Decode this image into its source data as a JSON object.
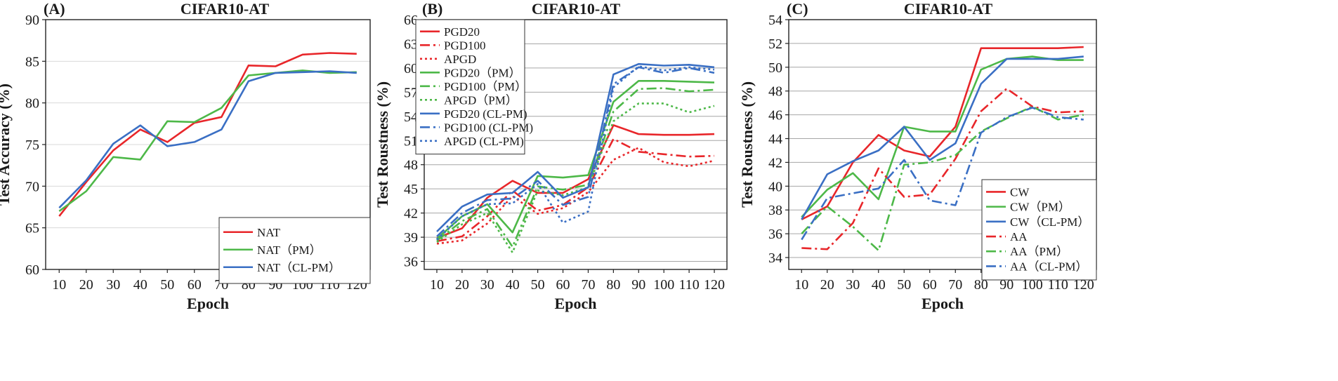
{
  "chart_data": [
    {
      "type": "line",
      "panel_label": "(A)",
      "title": "CIFAR10-AT",
      "xlabel": "Epoch",
      "ylabel": "Test Accuracy (%)",
      "x": [
        10,
        20,
        30,
        40,
        50,
        60,
        70,
        80,
        90,
        100,
        110,
        120
      ],
      "xticks": [
        "10",
        "20",
        "30",
        "40",
        "50",
        "60",
        "70",
        "80",
        "90",
        "100",
        "110",
        "120"
      ],
      "ylim": [
        60,
        90
      ],
      "yticks": [
        "60",
        "65",
        "70",
        "75",
        "80",
        "85",
        "90"
      ],
      "ytick_values": [
        60,
        65,
        70,
        75,
        80,
        85,
        90
      ],
      "grid": "horizontal",
      "legend_position": "bottom-right",
      "series": [
        {
          "name": "NAT",
          "color": "#e8262a",
          "dash": "solid",
          "values": [
            66.4,
            70.5,
            74.3,
            76.8,
            75.3,
            77.6,
            78.3,
            84.5,
            84.4,
            85.8,
            86.0,
            85.9
          ]
        },
        {
          "name": "NAT（PM）",
          "color": "#4db848",
          "dash": "solid",
          "values": [
            67.0,
            69.4,
            73.5,
            73.2,
            77.8,
            77.7,
            79.4,
            83.3,
            83.6,
            83.9,
            83.6,
            83.7
          ]
        },
        {
          "name": "NAT（CL-PM）",
          "color": "#3a6fc4",
          "dash": "solid",
          "values": [
            67.4,
            70.7,
            75.1,
            77.3,
            74.8,
            75.3,
            76.8,
            82.6,
            83.6,
            83.7,
            83.8,
            83.6
          ]
        }
      ]
    },
    {
      "type": "line",
      "panel_label": "(B)",
      "title": "CIFAR10-AT",
      "xlabel": "Epoch",
      "ylabel": "Test Roustness (%)",
      "x": [
        10,
        20,
        30,
        40,
        50,
        60,
        70,
        80,
        90,
        100,
        110,
        120
      ],
      "xticks": [
        "10",
        "20",
        "30",
        "40",
        "50",
        "60",
        "70",
        "80",
        "90",
        "100",
        "110",
        "120"
      ],
      "ylim": [
        35,
        66
      ],
      "yticks": [
        "36",
        "39",
        "42",
        "45",
        "48",
        "51",
        "54",
        "57",
        "60",
        "63",
        "66"
      ],
      "ytick_values": [
        36,
        39,
        42,
        45,
        48,
        51,
        54,
        57,
        60,
        63,
        66
      ],
      "grid": "horizontal",
      "legend_position": "top-left",
      "series": [
        {
          "name": "PGD20",
          "color": "#e8262a",
          "dash": "solid",
          "values": [
            38.9,
            40.1,
            43.9,
            46.0,
            44.5,
            44.5,
            46.2,
            52.9,
            51.8,
            51.7,
            51.7,
            51.8
          ]
        },
        {
          "name": "PGD100",
          "color": "#e8262a",
          "dash": "dashdot",
          "values": [
            38.5,
            39.1,
            41.6,
            44.8,
            42.3,
            43.0,
            45.2,
            51.2,
            49.6,
            49.3,
            49.0,
            49.1
          ]
        },
        {
          "name": "APGD",
          "color": "#e8262a",
          "dash": "dotted",
          "values": [
            38.2,
            38.6,
            40.7,
            44.1,
            41.9,
            42.6,
            44.6,
            48.6,
            50.1,
            48.3,
            47.8,
            48.5
          ]
        },
        {
          "name": "PGD20（PM）",
          "color": "#4db848",
          "dash": "solid",
          "values": [
            38.8,
            41.6,
            43.1,
            39.6,
            46.6,
            46.4,
            46.7,
            55.8,
            58.4,
            58.4,
            58.3,
            58.2
          ]
        },
        {
          "name": "PGD100（PM）",
          "color": "#4db848",
          "dash": "dashdot",
          "values": [
            38.6,
            41.0,
            42.5,
            37.8,
            45.3,
            44.9,
            45.5,
            54.6,
            57.4,
            57.5,
            57.1,
            57.3
          ]
        },
        {
          "name": "APGD（PM）",
          "color": "#4db848",
          "dash": "dotted",
          "values": [
            38.4,
            40.6,
            42.0,
            37.1,
            44.8,
            44.2,
            45.2,
            53.4,
            55.6,
            55.6,
            54.5,
            55.3
          ]
        },
        {
          "name": "PGD20 (CL-PM)",
          "color": "#3a6fc4",
          "dash": "solid",
          "values": [
            39.7,
            42.8,
            44.3,
            44.5,
            47.1,
            43.9,
            45.2,
            59.2,
            60.5,
            60.3,
            60.4,
            60.1
          ]
        },
        {
          "name": "PGD100 (CL-PM)",
          "color": "#3a6fc4",
          "dash": "dashdot",
          "values": [
            39.1,
            42.0,
            43.6,
            43.8,
            46.0,
            43.0,
            44.0,
            58.0,
            60.1,
            59.4,
            60.0,
            59.4
          ]
        },
        {
          "name": "APGD (CL-PM)",
          "color": "#3a6fc4",
          "dash": "dotted",
          "values": [
            38.7,
            41.6,
            43.1,
            43.2,
            45.6,
            40.8,
            42.2,
            57.6,
            60.2,
            59.7,
            60.1,
            59.8
          ]
        }
      ]
    },
    {
      "type": "line",
      "panel_label": "(C)",
      "title": "CIFAR10-AT",
      "xlabel": "Epoch",
      "ylabel": "Test Roustness (%)",
      "x": [
        10,
        20,
        30,
        40,
        50,
        60,
        70,
        80,
        90,
        100,
        110,
        120
      ],
      "xticks": [
        "10",
        "20",
        "30",
        "40",
        "50",
        "60",
        "70",
        "80",
        "90",
        "100",
        "110",
        "120"
      ],
      "ylim": [
        33,
        54
      ],
      "yticks": [
        "34",
        "36",
        "38",
        "40",
        "42",
        "44",
        "46",
        "48",
        "50",
        "52",
        "54"
      ],
      "ytick_values": [
        34,
        36,
        38,
        40,
        42,
        44,
        46,
        48,
        50,
        52,
        54
      ],
      "grid": "horizontal",
      "legend_position": "bottom-right",
      "series": [
        {
          "name": "CW",
          "color": "#e8262a",
          "dash": "solid",
          "values": [
            37.2,
            38.3,
            42.0,
            44.3,
            43.0,
            42.5,
            45.0,
            51.6,
            51.6,
            51.6,
            51.6,
            51.7
          ]
        },
        {
          "name": "CW（PM）",
          "color": "#4db848",
          "dash": "solid",
          "values": [
            37.4,
            39.7,
            41.1,
            38.9,
            45.0,
            44.6,
            44.6,
            49.8,
            50.7,
            50.9,
            50.6,
            50.6
          ]
        },
        {
          "name": "CW（CL-PM）",
          "color": "#3a6fc4",
          "dash": "solid",
          "values": [
            37.2,
            41.0,
            42.1,
            43.0,
            45.0,
            42.2,
            43.6,
            48.6,
            50.7,
            50.7,
            50.7,
            50.9
          ]
        },
        {
          "name": "AA",
          "color": "#e8262a",
          "dash": "dashdot",
          "values": [
            34.8,
            34.7,
            36.9,
            41.5,
            39.1,
            39.3,
            42.3,
            46.3,
            48.2,
            46.7,
            46.2,
            46.3
          ]
        },
        {
          "name": "AA（PM）",
          "color": "#4db848",
          "dash": "dashdot",
          "values": [
            36.0,
            38.3,
            36.6,
            34.6,
            41.8,
            42.0,
            42.6,
            44.6,
            45.7,
            46.7,
            45.6,
            46.0
          ]
        },
        {
          "name": "AA（CL-PM）",
          "color": "#3a6fc4",
          "dash": "dashdot",
          "values": [
            35.5,
            39.0,
            39.4,
            39.8,
            42.2,
            38.8,
            38.4,
            44.5,
            45.8,
            46.6,
            45.8,
            45.6
          ]
        }
      ]
    }
  ]
}
